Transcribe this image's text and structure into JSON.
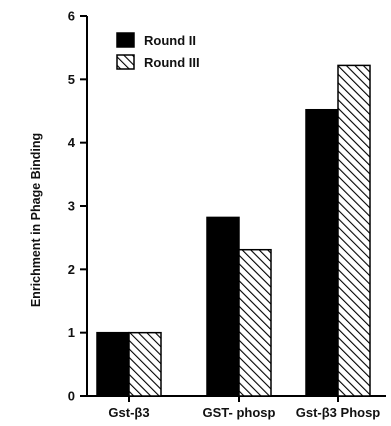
{
  "chart_data": {
    "type": "bar",
    "title": "",
    "xlabel": "",
    "ylabel": "Enrichment in Phage Binding",
    "categories": [
      "Gst-β3",
      "GST- phosp",
      "Gst-β3 Phosp"
    ],
    "series": [
      {
        "name": "Round II",
        "values": [
          1.0,
          2.82,
          4.52
        ],
        "fill": "solid",
        "color": "#000000"
      },
      {
        "name": "Round III",
        "values": [
          1.0,
          2.31,
          5.22
        ],
        "fill": "hatched",
        "color": "#000000"
      }
    ],
    "ylim": [
      0,
      6
    ],
    "yticks": [
      0,
      1,
      2,
      3,
      4,
      5,
      6
    ],
    "grid": false,
    "legend": "top-left"
  }
}
